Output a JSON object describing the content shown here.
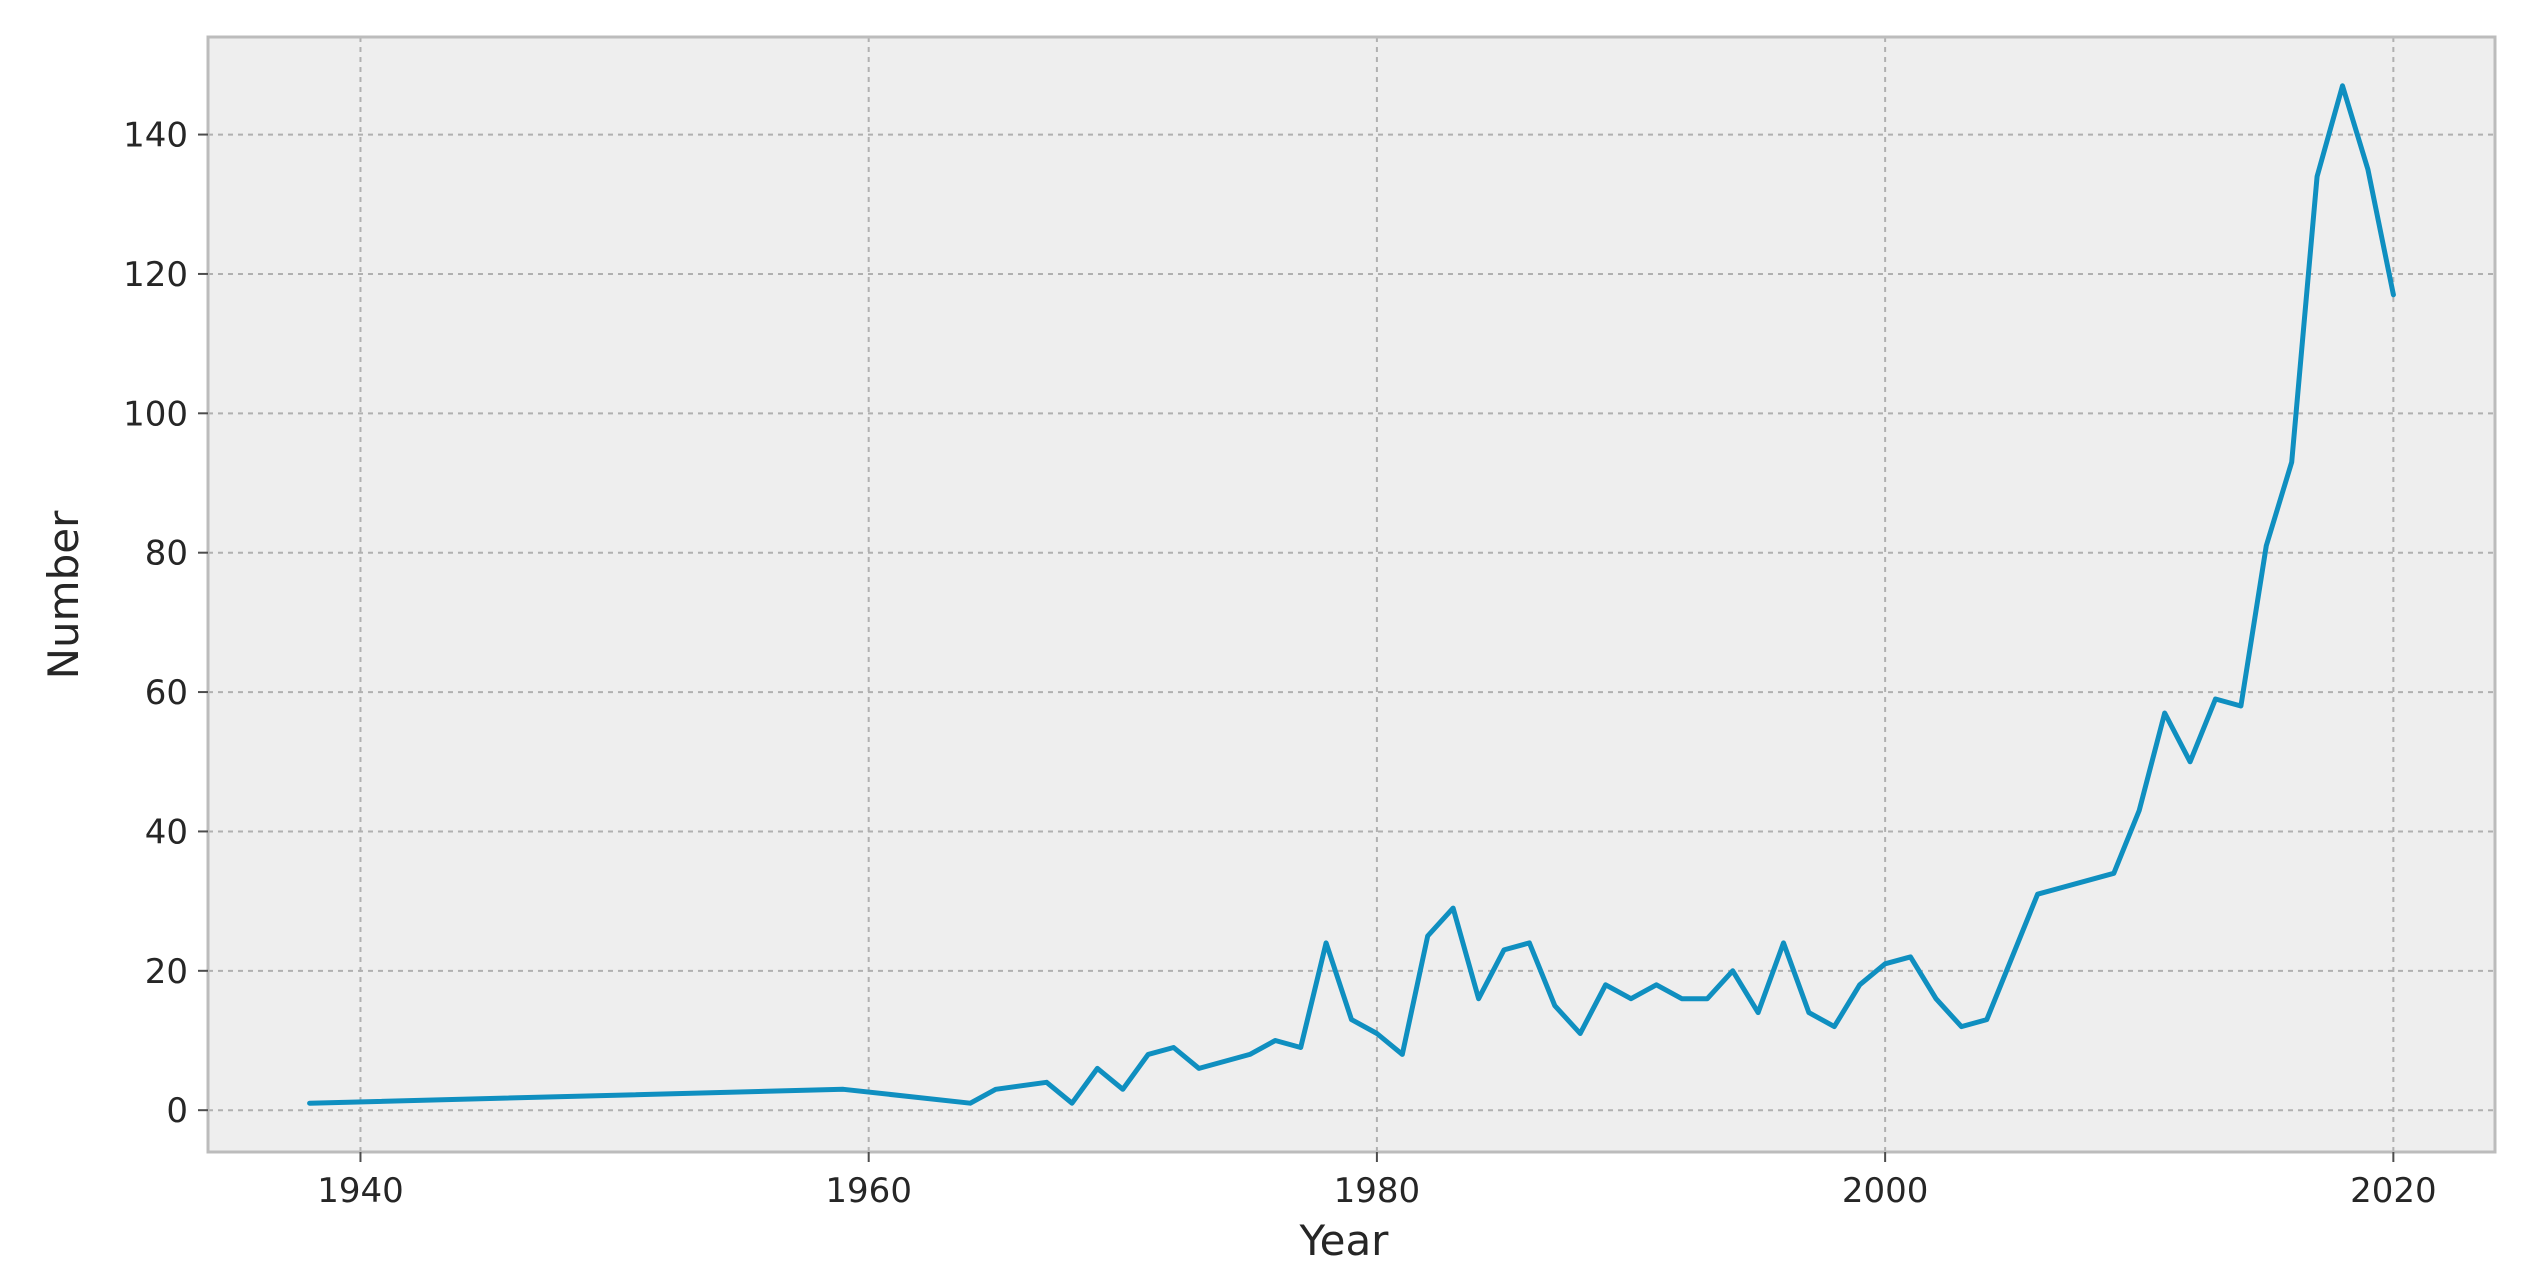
{
  "chart_data": {
    "type": "line",
    "xlabel": "Year",
    "ylabel": "Number",
    "xlim": [
      1934,
      2024
    ],
    "ylim": [
      -6,
      154
    ],
    "xticks": [
      1940,
      1960,
      1980,
      2000,
      2020
    ],
    "yticks": [
      0,
      20,
      40,
      60,
      80,
      100,
      120,
      140
    ],
    "grid": true,
    "style": {
      "background": "#eeeeee",
      "line_color": "#0f8fc0",
      "frame_color": "#bcbcbc"
    },
    "series": [
      {
        "x": [
          1938,
          1959,
          1964,
          1965,
          1967,
          1968,
          1969,
          1970,
          1971,
          1972,
          1973,
          1975,
          1976,
          1977,
          1978,
          1979,
          1980,
          1981,
          1982,
          1983,
          1984,
          1985,
          1986,
          1987,
          1988,
          1989,
          1990,
          1991,
          1992,
          1993,
          1994,
          1995,
          1996,
          1997,
          1998,
          1999,
          2000,
          2001,
          2002,
          2003,
          2004,
          2006,
          2009,
          2010,
          2011,
          2012,
          2013,
          2014,
          2015,
          2016,
          2017,
          2018,
          2019,
          2020
        ],
        "y": [
          1,
          3,
          1,
          3,
          4,
          1,
          6,
          3,
          8,
          9,
          6,
          8,
          10,
          9,
          24,
          13,
          11,
          8,
          25,
          29,
          16,
          23,
          24,
          15,
          11,
          18,
          16,
          18,
          16,
          16,
          20,
          14,
          24,
          14,
          12,
          18,
          21,
          22,
          16,
          12,
          13,
          31,
          34,
          43,
          57,
          50,
          59,
          58,
          81,
          93,
          134,
          147,
          135,
          117
        ]
      }
    ]
  }
}
